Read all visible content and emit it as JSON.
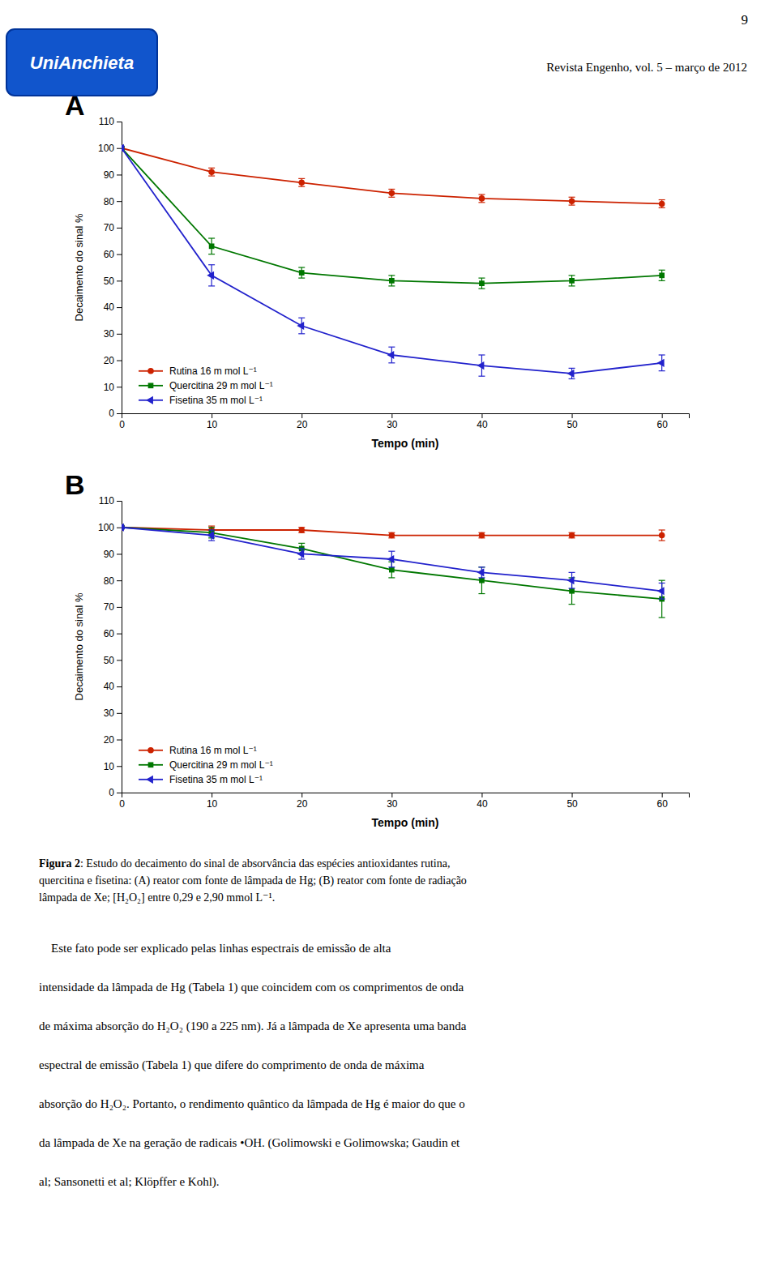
{
  "page_number": "9",
  "logo_text": "UniAnchieta",
  "header_text": "Revista Engenho, vol. 5 – março de 2012",
  "chart_data": [
    {
      "type": "line",
      "title": "A",
      "xlabel": "Tempo (min)",
      "ylabel": "Decaimento do sinal %",
      "x": [
        0,
        10,
        20,
        30,
        40,
        50,
        60
      ],
      "series": [
        {
          "name": "Rutina 16 m mol L⁻¹",
          "color": "#cc2200",
          "marker": "circle",
          "line_style": "solid",
          "values": [
            100,
            91,
            87,
            83,
            81,
            80,
            79
          ],
          "errors": [
            0.5,
            1.5,
            1.5,
            1.5,
            1.5,
            1.5,
            1.5
          ]
        },
        {
          "name": "Quercitina 29 m mol L⁻¹",
          "color": "#007700",
          "marker": "square",
          "line_style": "solid",
          "values": [
            100,
            63,
            53,
            50,
            49,
            50,
            52
          ],
          "errors": [
            0.5,
            3,
            2,
            2,
            2,
            2,
            2
          ]
        },
        {
          "name": "Fisetina 35 m mol L⁻¹",
          "color": "#2222cc",
          "marker": "triangle-left",
          "line_style": "solid",
          "values": [
            100,
            52,
            33,
            22,
            18,
            15,
            19
          ],
          "errors": [
            0.5,
            4,
            3,
            3,
            4,
            2,
            3
          ]
        }
      ],
      "xlim": [
        0,
        63
      ],
      "xticks": [
        0,
        10,
        20,
        30,
        40,
        50,
        60
      ],
      "ylim": [
        0,
        110
      ],
      "yticks": [
        0,
        10,
        20,
        30,
        40,
        50,
        60,
        70,
        80,
        90,
        100,
        110
      ],
      "grid": false,
      "legend": "lower left"
    },
    {
      "type": "line",
      "title": "B",
      "xlabel": "Tempo (min)",
      "ylabel": "Decaimento do sinal %",
      "x": [
        0,
        10,
        20,
        30,
        40,
        50,
        60
      ],
      "series": [
        {
          "name": "Rutina 16 m mol L⁻¹",
          "color": "#cc2200",
          "marker": "circle",
          "line_style": "solid",
          "values": [
            100,
            99,
            99,
            97,
            97,
            97,
            97
          ],
          "errors": [
            0.5,
            1.5,
            1.0,
            1.0,
            1.0,
            1.0,
            2.0
          ]
        },
        {
          "name": "Quercitina 29 m mol L⁻¹",
          "color": "#007700",
          "marker": "square",
          "line_style": "solid",
          "values": [
            100,
            98,
            92,
            84,
            80,
            76,
            73
          ],
          "errors": [
            0.5,
            2.0,
            2.0,
            3.0,
            5.0,
            5.0,
            7.0
          ]
        },
        {
          "name": "Fisetina 35 m mol L⁻¹",
          "color": "#2222cc",
          "marker": "triangle-left",
          "line_style": "solid",
          "values": [
            100,
            97,
            90,
            88,
            83,
            80,
            76
          ],
          "errors": [
            0.5,
            2.0,
            2.0,
            3.0,
            2.0,
            3.0,
            3.0
          ]
        }
      ],
      "xlim": [
        0,
        63
      ],
      "xticks": [
        0,
        10,
        20,
        30,
        40,
        50,
        60
      ],
      "ylim": [
        0,
        110
      ],
      "yticks": [
        0,
        10,
        20,
        30,
        40,
        50,
        60,
        70,
        80,
        90,
        100,
        110
      ],
      "grid": false,
      "legend": "lower left"
    }
  ],
  "caption": {
    "label": "Figura 2",
    "lines": [
      ": Estudo do decaimento do sinal de absorvância das espécies antioxidantes rutina,",
      "quercitina e fisetina: (A) reator com fonte de lâmpada de Hg; (B) reator com fonte de radiação",
      "lâmpada de Xe; [H₂O₂] entre 0,29 e 2,90 mmol L⁻¹."
    ]
  },
  "body": [
    "    Este fato pode ser explicado pelas linhas espectrais de emissão de alta",
    "intensidade da lâmpada de Hg (Tabela 1) que coincidem com os comprimentos de onda",
    "de máxima absorção do H₂O₂ (190 a 225 nm). Já a lâmpada de Xe apresenta uma banda",
    "espectral de emissão (Tabela 1) que difere do comprimento de onda de máxima",
    "absorção do H₂O₂. Portanto, o rendimento quântico da lâmpada de Hg é maior do que o",
    "da lâmpada de Xe na geração de radicais •OH. (Golimowski e Golimowska; Gaudin et",
    "al; Sansonetti et al; Klöpffer e Kohl)."
  ]
}
